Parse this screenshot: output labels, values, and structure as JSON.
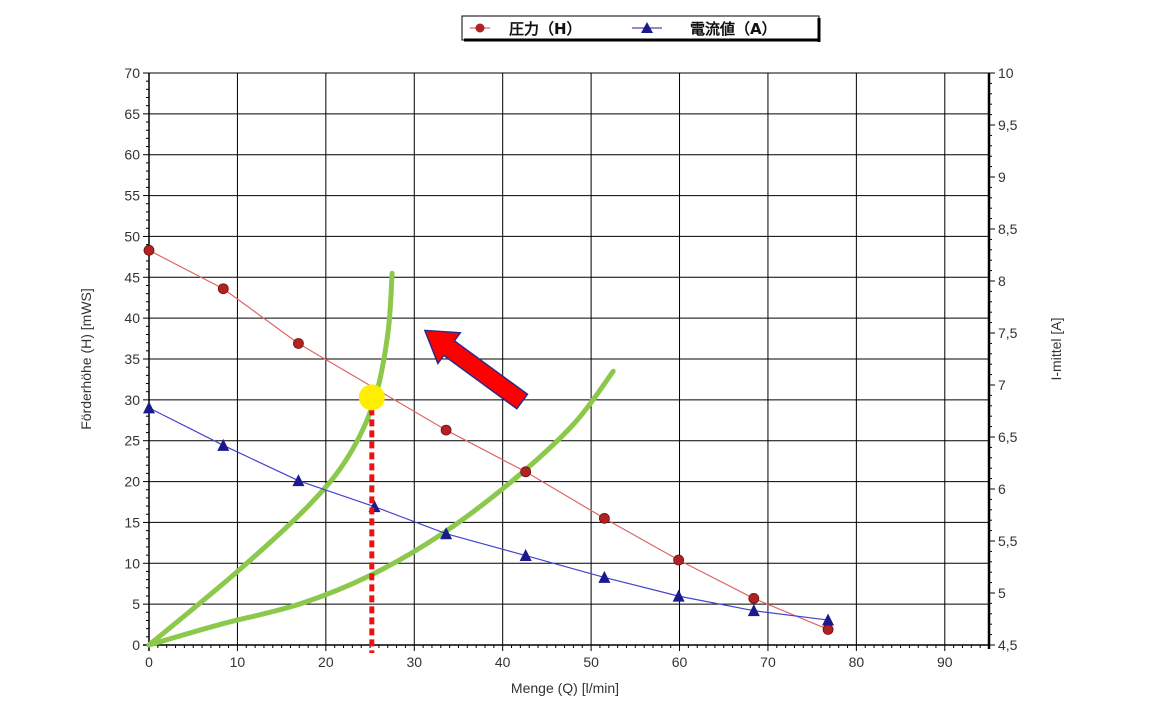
{
  "chart_data": {
    "type": "line",
    "x": [
      0,
      8.4,
      16.9,
      33.6,
      42.6,
      51.5,
      59.9,
      68.4,
      76.8
    ],
    "xlabel": "Menge (Q) [l/min]",
    "ylabel": "Förderhöhe (H)    [mWS]",
    "y2label": "I-mittel    [A]",
    "xlim": [
      0,
      95
    ],
    "ylim": [
      0,
      70
    ],
    "y2lim": [
      4.5,
      10
    ],
    "x_ticks": [
      "0",
      "10",
      "20",
      "30",
      "40",
      "50",
      "60",
      "70",
      "80",
      "90"
    ],
    "y_ticks": [
      "0",
      "5",
      "10",
      "15",
      "20",
      "25",
      "30",
      "35",
      "40",
      "45",
      "50",
      "55",
      "60",
      "65",
      "70"
    ],
    "y2_ticks": [
      "4,5",
      "5",
      "5,5",
      "6",
      "6,5",
      "7",
      "7,5",
      "8",
      "8,5",
      "9",
      "9,5",
      "10"
    ],
    "grid": true,
    "legend_position": "top-center",
    "series": [
      {
        "name": "圧力（H）",
        "axis": "left",
        "marker": "circle",
        "color": "#e06666",
        "marker_color": "#b22222",
        "x": [
          0,
          8.4,
          16.9,
          33.6,
          42.6,
          51.5,
          59.9,
          68.4,
          76.8
        ],
        "values": [
          48.3,
          43.6,
          36.9,
          26.3,
          21.2,
          15.5,
          10.4,
          5.7,
          1.9
        ]
      },
      {
        "name": "電流値（A）",
        "axis": "right",
        "marker": "triangle",
        "color": "#4444cc",
        "marker_color": "#1a1a8c",
        "x": [
          0,
          8.4,
          16.9,
          25.5,
          33.6,
          42.6,
          51.5,
          59.9,
          68.4,
          76.8
        ],
        "values": [
          6.78,
          6.42,
          6.08,
          5.83,
          5.57,
          5.36,
          5.15,
          4.97,
          4.83,
          4.74
        ]
      }
    ],
    "annotations": {
      "green_curve_steep": {
        "color": "#8cc84b",
        "points": [
          [
            0,
            0
          ],
          [
            10,
            9
          ],
          [
            18,
            17
          ],
          [
            22.5,
            23
          ],
          [
            25.5,
            30
          ],
          [
            27,
            38
          ],
          [
            27.5,
            45.5
          ]
        ]
      },
      "green_curve_gentle": {
        "color": "#8cc84b",
        "points": [
          [
            0,
            0
          ],
          [
            8,
            2.5
          ],
          [
            17,
            5
          ],
          [
            25,
            8.5
          ],
          [
            33,
            13.5
          ],
          [
            41,
            20
          ],
          [
            48,
            27
          ],
          [
            52.5,
            33.5
          ]
        ]
      },
      "operating_point": {
        "color": "#ffee00",
        "x": 25.2,
        "y": 30.3
      },
      "dashed_drop_line": {
        "color": "#ee1111",
        "x": 25.2,
        "y_from": 30.3,
        "y_to": 0
      },
      "arrow": {
        "color": "#ff0000",
        "from": [
          42.2,
          29.8
        ],
        "to": [
          31.2,
          38.5
        ]
      }
    }
  }
}
